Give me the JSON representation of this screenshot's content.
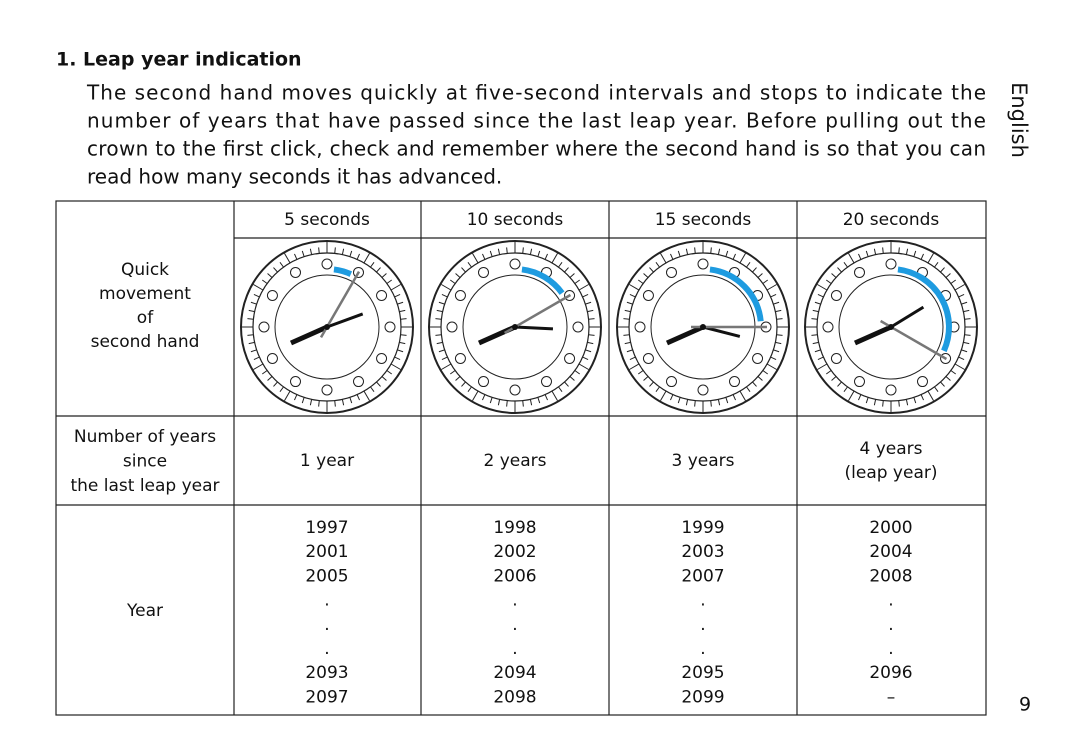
{
  "section": {
    "title": "1. Leap year indication",
    "body_lines": [
      "The second hand moves quickly at five-second intervals and stops to indicate the",
      "number of years that have passed since the last leap year.  Before pulling out the",
      "crown to the first click, check and remember where the second hand is so that you can",
      "read how many seconds it has advanced."
    ]
  },
  "side_label": "English",
  "table": {
    "header": [
      "5 seconds",
      "10 seconds",
      "15 seconds",
      "20 seconds"
    ],
    "movement_label": [
      "Quick",
      "movement",
      "of",
      "second hand"
    ],
    "years_label": [
      "Number of years",
      "since",
      "the last leap year"
    ],
    "years_since": [
      [
        "1 year"
      ],
      [
        "2 years"
      ],
      [
        "3 years"
      ],
      [
        "4 years",
        "(leap year)"
      ]
    ],
    "year_label": "Year",
    "years": [
      [
        1997,
        2001,
        2005,
        ".",
        ".",
        ".",
        2093,
        2097
      ],
      [
        1998,
        2002,
        2006,
        ".",
        ".",
        ".",
        2094,
        2098
      ],
      [
        1999,
        2003,
        2007,
        ".",
        ".",
        ".",
        2095,
        2099
      ],
      [
        2000,
        2004,
        2008,
        ".",
        ".",
        ".",
        2096,
        "–"
      ]
    ]
  },
  "page_number": "9"
}
